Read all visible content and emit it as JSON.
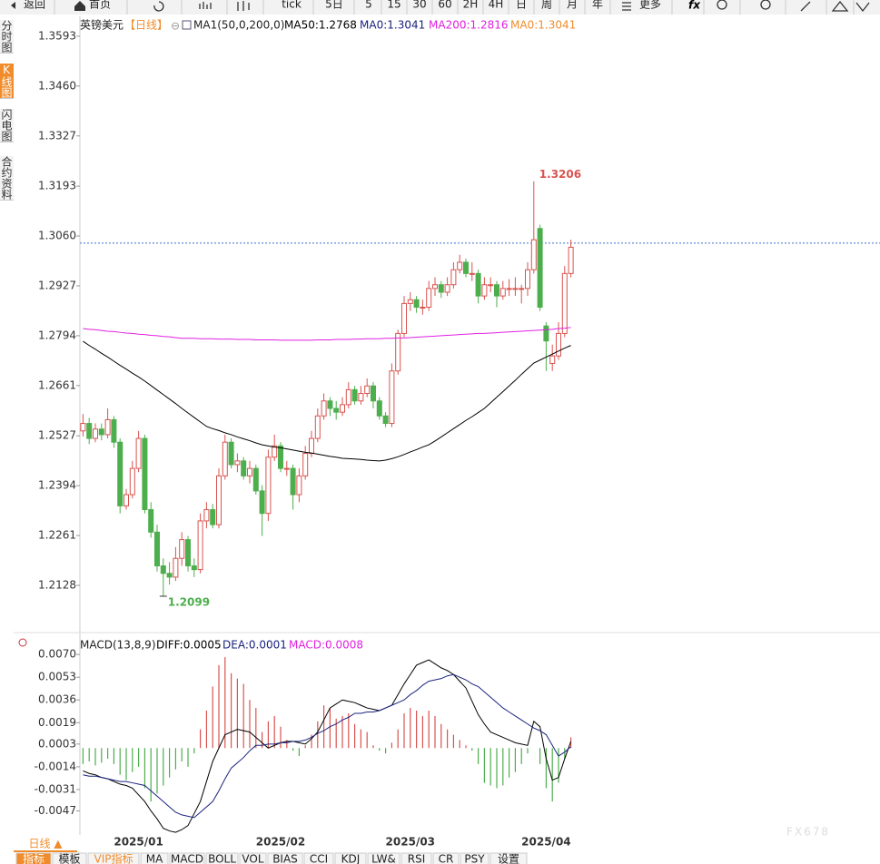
{
  "toolbar": [
    "返回",
    "首页",
    "tick",
    "5日",
    "5",
    "15",
    "30",
    "60",
    "2H",
    "4H",
    "日",
    "周",
    "月",
    "年",
    "更多"
  ],
  "sidebar": [
    "分时图",
    "K线图",
    "闪电图",
    "合约资料"
  ],
  "chart_data": [
    {
      "type": "candlestick",
      "title": "英镑美元",
      "period": "【日线】",
      "indicator": "MA1(50,0,200,0)",
      "categories": [
        null,
        null,
        null,
        null,
        null,
        null,
        null,
        null,
        null,
        "2025/01",
        null,
        null,
        null,
        null,
        null,
        null,
        null,
        null,
        null,
        null,
        null,
        null,
        null,
        null,
        null,
        null,
        null,
        null,
        null,
        null,
        null,
        null,
        "2025/02",
        null,
        null,
        null,
        null,
        null,
        null,
        null,
        null,
        null,
        null,
        null,
        null,
        null,
        null,
        null,
        null,
        null,
        null,
        null,
        null,
        "2025/03",
        null,
        null,
        null,
        null,
        null,
        null,
        null,
        null,
        null,
        null,
        null,
        null,
        null,
        null,
        null,
        null,
        null,
        null,
        null,
        null,
        null,
        "2025/04",
        null,
        null,
        null,
        null
      ],
      "open": [
        1.254,
        1.256,
        1.252,
        1.2545,
        1.253,
        1.257,
        1.251,
        1.234,
        1.237,
        1.244,
        1.252,
        1.233,
        1.227,
        1.218,
        1.216,
        1.215,
        1.22,
        1.225,
        1.218,
        1.217,
        1.23,
        1.233,
        1.229,
        1.242,
        1.251,
        1.245,
        1.246,
        1.242,
        1.244,
        1.238,
        1.232,
        1.247,
        1.25,
        1.244,
        1.244,
        1.237,
        1.242,
        1.248,
        1.252,
        1.258,
        1.262,
        1.26,
        1.259,
        1.261,
        1.265,
        1.262,
        1.264,
        1.266,
        1.262,
        1.258,
        1.256,
        1.27,
        1.28,
        1.288,
        1.289,
        1.287,
        1.287,
        1.292,
        1.293,
        1.291,
        1.293,
        1.297,
        1.299,
        1.296,
        1.296,
        1.29,
        1.293,
        1.293,
        1.29,
        1.292,
        1.292,
        1.292,
        1.292,
        1.297,
        1.308,
        1.282,
        1.272,
        1.274,
        1.28,
        1.296
      ],
      "high": [
        1.2585,
        1.2575,
        1.256,
        1.256,
        1.26,
        1.258,
        1.252,
        1.2385,
        1.246,
        1.254,
        1.253,
        1.235,
        1.229,
        1.22,
        1.219,
        1.223,
        1.227,
        1.226,
        1.22,
        1.232,
        1.235,
        1.2345,
        1.244,
        1.253,
        1.252,
        1.248,
        1.247,
        1.246,
        1.245,
        1.2395,
        1.249,
        1.253,
        1.251,
        1.246,
        1.245,
        1.244,
        1.25,
        1.254,
        1.26,
        1.264,
        1.263,
        1.262,
        1.263,
        1.267,
        1.266,
        1.266,
        1.268,
        1.267,
        1.263,
        1.259,
        1.272,
        1.281,
        1.29,
        1.291,
        1.29,
        1.289,
        1.294,
        1.295,
        1.294,
        1.295,
        1.299,
        1.301,
        1.3,
        1.299,
        1.297,
        1.295,
        1.295,
        1.294,
        1.294,
        1.2945,
        1.295,
        1.293,
        1.299,
        1.3206,
        1.309,
        1.283,
        1.277,
        1.283,
        1.298,
        1.305
      ],
      "low": [
        1.2525,
        1.2505,
        1.251,
        1.2515,
        1.252,
        1.2495,
        1.232,
        1.233,
        1.236,
        1.243,
        1.232,
        1.2255,
        1.2165,
        1.2099,
        1.213,
        1.214,
        1.218,
        1.2165,
        1.215,
        1.216,
        1.228,
        1.228,
        1.228,
        1.241,
        1.244,
        1.243,
        1.241,
        1.24,
        1.237,
        1.226,
        1.23,
        1.246,
        1.243,
        1.242,
        1.233,
        1.235,
        1.241,
        1.247,
        1.251,
        1.257,
        1.258,
        1.257,
        1.258,
        1.26,
        1.261,
        1.261,
        1.263,
        1.26,
        1.257,
        1.255,
        1.255,
        1.269,
        1.279,
        1.286,
        1.2855,
        1.285,
        1.286,
        1.29,
        1.2895,
        1.29,
        1.292,
        1.296,
        1.295,
        1.294,
        1.288,
        1.289,
        1.291,
        1.287,
        1.289,
        1.29,
        1.29,
        1.288,
        1.29,
        1.296,
        1.286,
        1.27,
        1.27,
        1.273,
        1.279,
        1.295
      ],
      "close": [
        1.256,
        1.252,
        1.2545,
        1.253,
        1.257,
        1.251,
        1.234,
        1.237,
        1.244,
        1.252,
        1.233,
        1.227,
        1.218,
        1.216,
        1.215,
        1.22,
        1.225,
        1.218,
        1.217,
        1.23,
        1.233,
        1.229,
        1.242,
        1.251,
        1.245,
        1.246,
        1.242,
        1.244,
        1.238,
        1.232,
        1.247,
        1.25,
        1.244,
        1.244,
        1.237,
        1.242,
        1.248,
        1.252,
        1.258,
        1.262,
        1.26,
        1.259,
        1.261,
        1.265,
        1.262,
        1.264,
        1.266,
        1.262,
        1.258,
        1.256,
        1.27,
        1.28,
        1.288,
        1.289,
        1.287,
        1.287,
        1.292,
        1.293,
        1.291,
        1.293,
        1.297,
        1.299,
        1.296,
        1.296,
        1.29,
        1.293,
        1.293,
        1.29,
        1.292,
        1.292,
        1.292,
        1.292,
        1.297,
        1.305,
        1.287,
        1.278,
        1.274,
        1.28,
        1.296,
        1.303
      ],
      "up_color": "#d9534f",
      "down_color": "#4cae4c",
      "series": [
        {
          "name": "MA50:1.2768",
          "color": "#000000",
          "values": [
            1.2779,
            1.2768,
            1.2758,
            1.2747,
            1.2737,
            1.2726,
            1.2715,
            1.2705,
            1.2694,
            1.2684,
            1.2673,
            1.2661,
            1.2649,
            1.2637,
            1.2625,
            1.2613,
            1.26,
            1.2588,
            1.2576,
            1.2564,
            1.2552,
            1.2546,
            1.2541,
            1.2535,
            1.253,
            1.2524,
            1.2519,
            1.2514,
            1.2508,
            1.2503,
            1.25,
            1.2497,
            1.2495,
            1.2492,
            1.2489,
            1.2486,
            1.2483,
            1.2481,
            1.2478,
            1.2475,
            1.2472,
            1.247,
            1.2467,
            1.2466,
            1.2465,
            1.2464,
            1.2462,
            1.2461,
            1.246,
            1.2462,
            1.2466,
            1.2471,
            1.2477,
            1.2484,
            1.249,
            1.2497,
            1.2503,
            1.2513,
            1.2524,
            1.2535,
            1.2546,
            1.2557,
            1.2568,
            1.2578,
            1.2589,
            1.26,
            1.2615,
            1.263,
            1.2645,
            1.266,
            1.2675,
            1.2691,
            1.2706,
            1.2721,
            1.2729,
            1.2737,
            1.2745,
            1.2753,
            1.2761,
            1.2768
          ]
        },
        {
          "name": "MA0:1.3041",
          "color": "#1a237e"
        },
        {
          "name": "MA200:1.2816",
          "color": "#e020e0",
          "values": [
            1.2813,
            1.2811,
            1.281,
            1.2808,
            1.2806,
            1.2805,
            1.2803,
            1.2801,
            1.28,
            1.2798,
            1.2797,
            1.2795,
            1.2794,
            1.2792,
            1.2791,
            1.2789,
            1.2787,
            1.2787,
            1.2787,
            1.2786,
            1.2786,
            1.2786,
            1.2785,
            1.2785,
            1.2785,
            1.2784,
            1.2784,
            1.2784,
            1.2783,
            1.2783,
            1.2783,
            1.2783,
            1.2782,
            1.2782,
            1.2782,
            1.2782,
            1.2782,
            1.2782,
            1.2783,
            1.2783,
            1.2783,
            1.2784,
            1.2784,
            1.2784,
            1.2785,
            1.2785,
            1.2786,
            1.2786,
            1.2786,
            1.2787,
            1.2787,
            1.2788,
            1.2788,
            1.2789,
            1.279,
            1.2791,
            1.2792,
            1.2793,
            1.2794,
            1.2795,
            1.2796,
            1.2797,
            1.2798,
            1.2799,
            1.28,
            1.28,
            1.2801,
            1.2802,
            1.2803,
            1.2804,
            1.2805,
            1.2806,
            1.2807,
            1.2808,
            1.2809,
            1.281,
            1.2811,
            1.2813,
            1.2814,
            1.2816
          ]
        },
        {
          "name": "MA0:1.3041",
          "color": "#f08c2c"
        }
      ],
      "price_line": 1.3041,
      "price_line_color": "#3a6fd0",
      "ylim": [
        1.2019,
        1.3646
      ],
      "yticks": [
        1.3593,
        {
          "value": 1.346,
          "label": "1.3460"
        },
        1.3327,
        1.3193,
        {
          "value": 1.306,
          "label": "1.3060"
        },
        1.2927,
        1.2794,
        1.2661,
        1.2527,
        1.2394,
        1.2261,
        1.2128
      ],
      "grid": false
    },
    {
      "type": "macd",
      "title": "MACD(13,8,9)",
      "series": [
        {
          "name": "DIFF:0.0005",
          "color": "#000000",
          "values": [
            -0.0017,
            -0.0019,
            -0.002,
            -0.0022,
            -0.0023,
            -0.0025,
            -0.0027,
            -0.0028,
            -0.003,
            -0.0035,
            -0.004,
            -0.0047,
            -0.0053,
            -0.006,
            -0.0062,
            -0.0063,
            -0.0061,
            -0.0058,
            -0.0049,
            -0.004,
            -0.0025,
            -0.001,
            0.0,
            0.001,
            0.0012,
            0.0014,
            0.0013,
            0.0012,
            0.0008,
            0.0004,
            0.0,
            0.0002,
            0.0004,
            0.0005,
            0.0005,
            0.0004,
            0.0003,
            0.0007,
            0.0012,
            0.0021,
            0.003,
            0.0033,
            0.0036,
            0.0035,
            0.0034,
            0.0032,
            0.003,
            0.0029,
            0.0028,
            0.003,
            0.0032,
            0.004,
            0.0048,
            0.0055,
            0.0062,
            0.0064,
            0.0066,
            0.0063,
            0.006,
            0.0058,
            0.0055,
            0.005,
            0.0045,
            0.0035,
            0.0025,
            0.0018,
            0.0012,
            0.001,
            0.0008,
            0.0006,
            0.0004,
            0.0003,
            0.0002,
            0.002,
            0.0016,
            -0.0008,
            -0.0024,
            -0.0022,
            -0.0008,
            0.0005
          ]
        },
        {
          "name": "DEA:0.0001",
          "color": "#1a237e",
          "values": [
            -0.002,
            -0.0021,
            -0.0021,
            -0.0022,
            -0.0023,
            -0.0024,
            -0.0025,
            -0.0025,
            -0.0026,
            -0.0027,
            -0.0028,
            -0.0032,
            -0.0036,
            -0.004,
            -0.0044,
            -0.0048,
            -0.005,
            -0.0051,
            -0.0052,
            -0.0048,
            -0.0044,
            -0.004,
            -0.0032,
            -0.0023,
            -0.0015,
            -0.0011,
            -0.0007,
            -0.0002,
            0.0002,
            0.0002,
            0.0003,
            0.0003,
            0.0004,
            0.0004,
            0.0005,
            0.0005,
            0.0006,
            0.0008,
            0.0011,
            0.0013,
            0.0016,
            0.0018,
            0.0021,
            0.0023,
            0.0026,
            0.0026,
            0.0027,
            0.0027,
            0.0028,
            0.003,
            0.0032,
            0.0034,
            0.0036,
            0.004,
            0.0043,
            0.0047,
            0.005,
            0.0051,
            0.0052,
            0.0054,
            0.0055,
            0.0053,
            0.0051,
            0.0048,
            0.0046,
            0.0042,
            0.0038,
            0.0034,
            0.003,
            0.0027,
            0.0024,
            0.0021,
            0.0018,
            0.0015,
            0.0013,
            0.001,
            0.0002,
            -0.0006,
            -0.0003,
            0.0001
          ]
        },
        {
          "name": "MACD:0.0008",
          "color": "#e020e0",
          "up_color": "#d9534f",
          "down_color": "#4cae4c",
          "values": [
            -0.0012,
            -0.001,
            -0.0013,
            -0.0011,
            -0.0008,
            -0.0012,
            -0.002,
            -0.0024,
            -0.0018,
            -0.0014,
            -0.003,
            -0.004,
            -0.0034,
            -0.0028,
            -0.0022,
            -0.0016,
            -0.001,
            -0.0014,
            -0.0004,
            0.0014,
            0.0028,
            0.0046,
            0.0062,
            0.0068,
            0.0056,
            0.0052,
            0.0048,
            0.0036,
            0.003,
            0.0012,
            0.002,
            0.0024,
            0.0016,
            0.0006,
            -0.0002,
            -0.0006,
            0.0002,
            0.001,
            0.002,
            0.0032,
            0.003,
            0.0022,
            0.0024,
            0.0026,
            0.0018,
            0.0014,
            0.0012,
            0.0002,
            -0.0002,
            -0.0004,
            0.0004,
            0.0014,
            0.0026,
            0.003,
            0.0028,
            0.0024,
            0.0028,
            0.0024,
            0.0018,
            0.0014,
            0.001,
            0.0006,
            0.0002,
            -0.0002,
            -0.0012,
            -0.0026,
            -0.0028,
            -0.003,
            -0.0028,
            -0.0022,
            -0.0018,
            -0.0012,
            -0.0004,
            0.0,
            -0.0012,
            -0.003,
            -0.004,
            -0.0026,
            -0.0008,
            0.0008
          ]
        }
      ],
      "ylim": [
        -0.0065,
        0.0083
      ],
      "yticks": [
        {
          "value": 0.007,
          "label": "0.0070"
        },
        0.0053,
        0.0036,
        0.0019,
        0.0003,
        -0.0014,
        -0.0031,
        -0.0047
      ]
    }
  ],
  "bottom_bar": {
    "period_button": "日线 ▲",
    "tabs": [
      "指标",
      "模板",
      "VIP指标",
      "MA",
      "MACD",
      "BOLL",
      "VOL",
      "BIAS",
      "CCI",
      "KDJ",
      "LW&",
      "RSI",
      "CR",
      "PSY",
      "设置"
    ]
  },
  "watermark": "FX678"
}
